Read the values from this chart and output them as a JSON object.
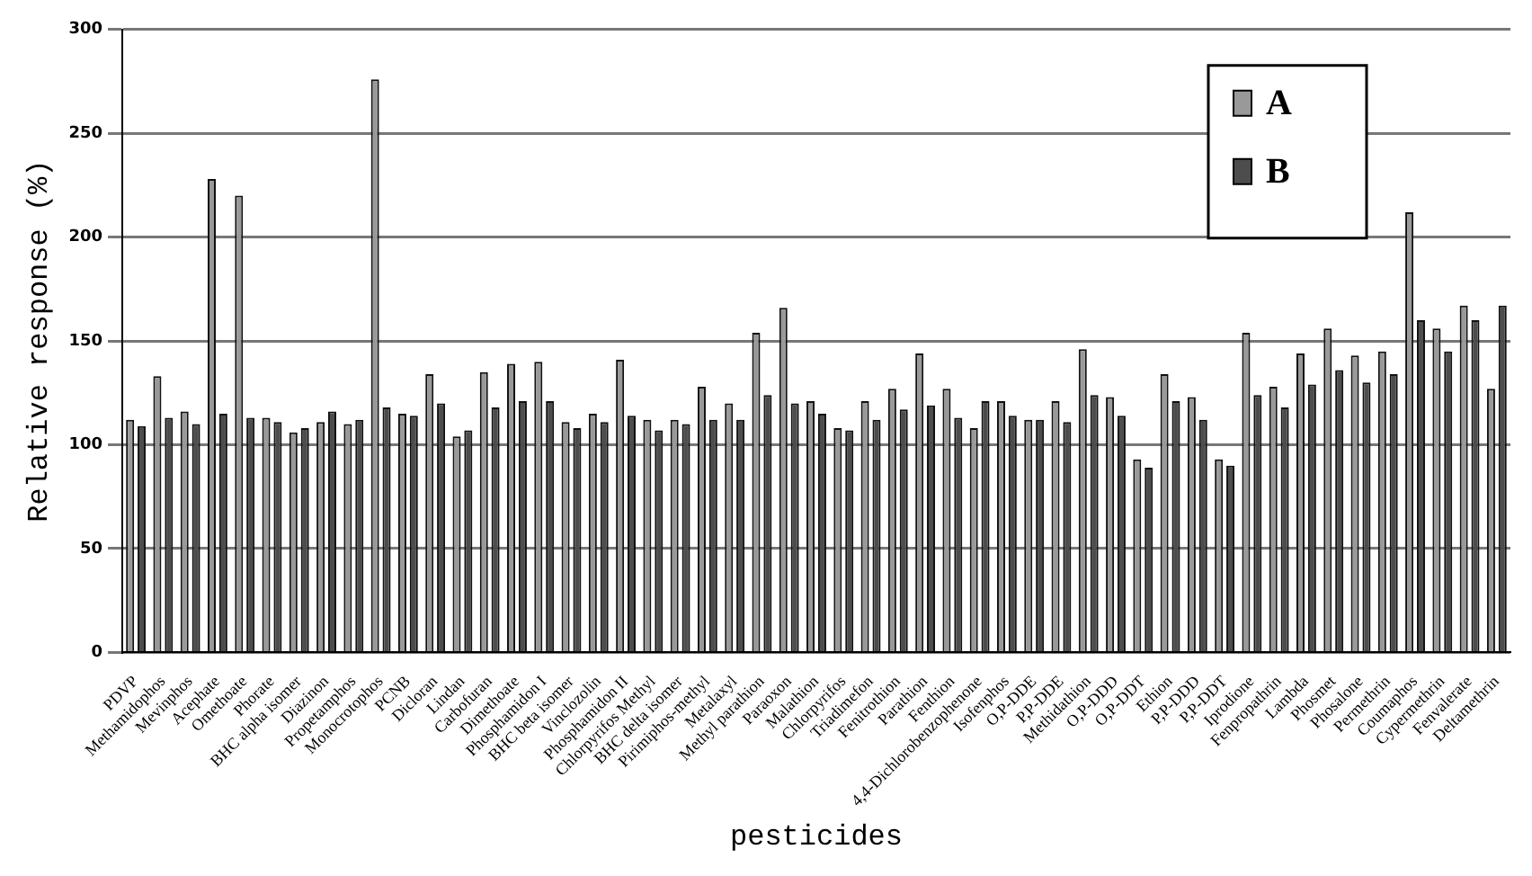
{
  "chart_data": {
    "type": "bar",
    "xlabel": "pesticides",
    "ylabel": "Relative response (%)",
    "categories": [
      "PDVP",
      "Methamidophos",
      "Mevinphos",
      "Acephate",
      "Omethoate",
      "Phorate",
      "BHC alpha isomer",
      "Diazinon",
      "Propetamphos",
      "Monocrotophos",
      "PCNB",
      "Dicloran",
      "Lindan",
      "Carbofuran",
      "Dimethoate",
      "Phosphamidon I",
      "BHC beta isomer",
      "Vinclozolin",
      "Phosphamidon II",
      "Chlorpyrifos Methyl",
      "BHC delta isomer",
      "Pirimiphos-methyl",
      "Metalaxyl",
      "Methyl parathion",
      "Paraoxon",
      "Malathion",
      "Chlorpyrifos",
      "Triadimefon",
      "Fenitrothion",
      "Parathion",
      "Fenthion",
      "4,4-Dichlorobenzophenone",
      "Isofenphos",
      "O,P-DDE",
      "P,P-DDE",
      "Methidathion",
      "O,P-DDD",
      "O,P-DDT",
      "Ethion",
      "P,P-DDD",
      "P,P-DDT",
      "Iprodione",
      "Fenpropathrin",
      "Lambda",
      "Phosmet",
      "Phosalone",
      "Permethrin",
      "Coumaphos",
      "Cypermethrin",
      "Fenvalerate",
      "Deltamethrin"
    ],
    "series": [
      {
        "name": "A",
        "color": "#999999",
        "values": [
          112,
          133,
          116,
          228,
          220,
          113,
          106,
          111,
          110,
          276,
          115,
          134,
          104,
          135,
          139,
          140,
          111,
          115,
          141,
          112,
          112,
          128,
          120,
          154,
          166,
          121,
          108,
          121,
          127,
          144,
          127,
          108,
          121,
          112,
          121,
          146,
          123,
          93,
          134,
          123,
          93,
          154,
          128,
          144,
          156,
          143,
          145,
          212,
          156,
          167,
          127
        ]
      },
      {
        "name": "B",
        "color": "#4d4d4d",
        "values": [
          109,
          113,
          110,
          115,
          113,
          111,
          108,
          116,
          112,
          118,
          114,
          120,
          107,
          118,
          121,
          121,
          108,
          111,
          114,
          107,
          110,
          112,
          112,
          124,
          120,
          115,
          107,
          112,
          117,
          119,
          113,
          121,
          114,
          112,
          111,
          124,
          114,
          89,
          121,
          112,
          90,
          124,
          118,
          129,
          136,
          130,
          134,
          160,
          145,
          160,
          167
        ]
      }
    ],
    "ylim": [
      0,
      300
    ],
    "yticks": [
      0,
      50,
      100,
      150,
      200,
      250,
      300
    ],
    "grid": "y",
    "legend": "top right"
  }
}
